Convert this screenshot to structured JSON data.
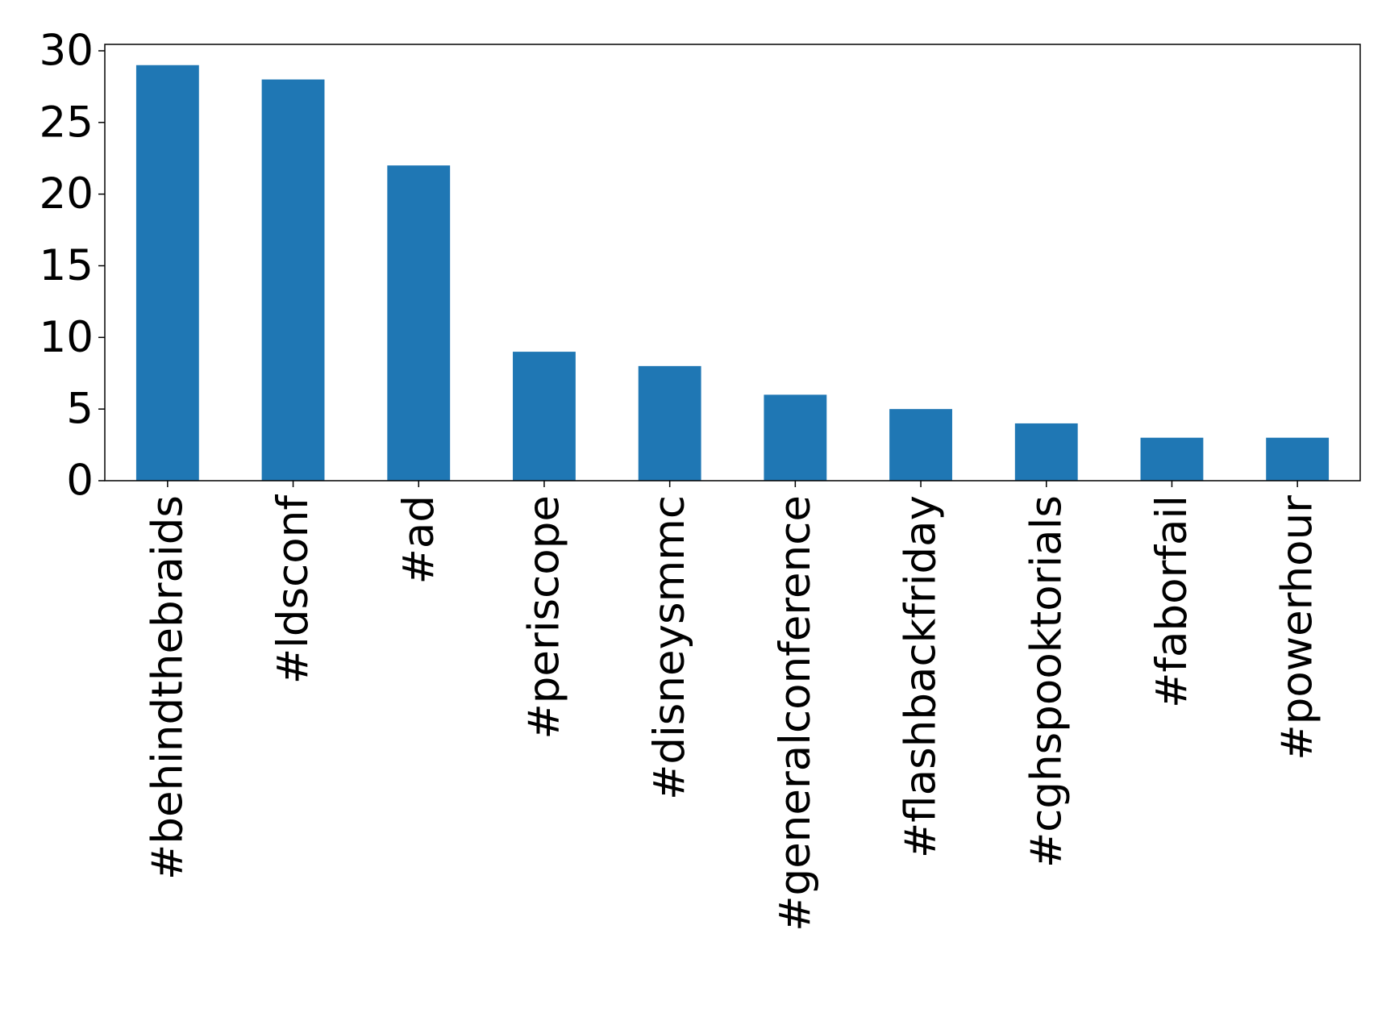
{
  "chart_data": {
    "type": "bar",
    "categories": [
      "#behindthebraids",
      "#ldsconf",
      "#ad",
      "#periscope",
      "#disneysmmc",
      "#generalconference",
      "#flashbackfriday",
      "#cghspooktorials",
      "#faborfail",
      "#powerhour"
    ],
    "values": [
      29,
      28,
      22,
      9,
      8,
      6,
      5,
      4,
      3,
      3
    ],
    "color": "#1f77b4",
    "ylim": [
      0,
      30.45
    ],
    "yticks": [
      0,
      5,
      10,
      15,
      20,
      25,
      30
    ],
    "grid": false
  }
}
